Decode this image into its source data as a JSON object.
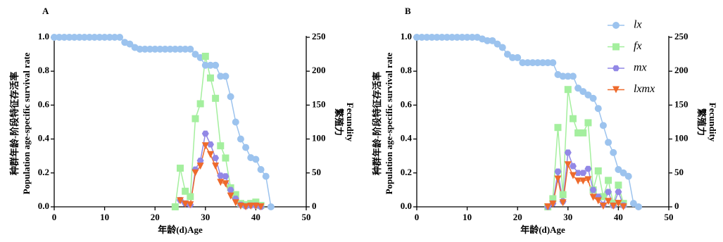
{
  "chart_data": [
    {
      "type": "line",
      "panel_label": "A",
      "x_label": "年龄(d)Age",
      "y_label": [
        "种群年龄-阶段特征存活率",
        "Population age-specific survival rate"
      ],
      "y2_label": [
        "繁殖力",
        "Fecundity"
      ],
      "x": [
        0,
        1,
        2,
        3,
        4,
        5,
        6,
        7,
        8,
        9,
        10,
        11,
        12,
        13,
        14,
        15,
        16,
        17,
        18,
        19,
        20,
        21,
        22,
        23,
        24,
        25,
        26,
        27,
        28,
        29,
        30,
        31,
        32,
        33,
        34,
        35,
        36,
        37,
        38,
        39,
        40,
        41,
        42,
        43
      ],
      "xlim": [
        0,
        50
      ],
      "xticks": [
        0,
        10,
        20,
        30,
        40,
        50
      ],
      "ylim": [
        0,
        1
      ],
      "yticks": [
        {
          "value": 0,
          "label": "0.0"
        },
        0.2,
        0.4,
        0.6,
        0.8,
        {
          "value": 1,
          "label": "1.0"
        }
      ],
      "y2lim": [
        0,
        250
      ],
      "y2ticks": [
        0,
        50,
        100,
        150,
        200,
        250
      ],
      "legend": false,
      "series": [
        {
          "color": "#9cc3ee",
          "marker": "circle",
          "axis": "y",
          "values": [
            1,
            1,
            1,
            1,
            1,
            1,
            1,
            1,
            1,
            1,
            1,
            1,
            1,
            1,
            0.97,
            0.96,
            0.94,
            0.93,
            0.93,
            0.93,
            0.93,
            0.93,
            0.93,
            0.93,
            0.93,
            0.93,
            0.93,
            0.93,
            0.9,
            0.88,
            0.835,
            0.835,
            0.835,
            0.77,
            0.77,
            0.65,
            0.5,
            0.4,
            0.35,
            0.29,
            0.28,
            0.22,
            0.18,
            0
          ]
        },
        {
          "color": "#a4ef9e",
          "marker": "square",
          "axis": "y2",
          "values": [
            null,
            null,
            null,
            null,
            null,
            null,
            null,
            null,
            null,
            null,
            null,
            null,
            null,
            null,
            null,
            null,
            null,
            null,
            null,
            null,
            null,
            null,
            null,
            null,
            0,
            57,
            23,
            15,
            130,
            152,
            222,
            190,
            160,
            90,
            72,
            28,
            18,
            5,
            3,
            5,
            7,
            2,
            null,
            null
          ]
        },
        {
          "color": "#9288e6",
          "marker": "hexagon",
          "axis": "y2",
          "values": [
            null,
            null,
            null,
            null,
            null,
            null,
            null,
            null,
            null,
            null,
            null,
            null,
            null,
            null,
            null,
            null,
            null,
            null,
            null,
            null,
            null,
            null,
            null,
            null,
            null,
            10,
            5,
            3,
            55,
            68,
            108,
            92,
            72,
            46,
            45,
            25,
            12,
            3,
            1,
            2,
            2,
            0,
            null,
            null
          ]
        },
        {
          "color": "#ee6a2c",
          "marker": "triangle",
          "axis": "y2",
          "values": [
            null,
            null,
            null,
            null,
            null,
            null,
            null,
            null,
            null,
            null,
            null,
            null,
            null,
            null,
            null,
            null,
            null,
            null,
            null,
            null,
            null,
            null,
            null,
            null,
            null,
            9,
            4,
            3,
            50,
            60,
            90,
            77,
            60,
            36,
            34,
            16,
            6,
            1,
            0,
            1,
            1,
            0,
            null,
            null
          ]
        }
      ]
    },
    {
      "type": "line",
      "panel_label": "B",
      "x_label": "年龄(d)Age",
      "y_label": [
        "种群年龄-阶段特征存活率",
        "Population age-specific survival rate"
      ],
      "y2_label": [
        "繁殖力",
        "Fecundity"
      ],
      "x": [
        0,
        1,
        2,
        3,
        4,
        5,
        6,
        7,
        8,
        9,
        10,
        11,
        12,
        13,
        14,
        15,
        16,
        17,
        18,
        19,
        20,
        21,
        22,
        23,
        24,
        25,
        26,
        27,
        28,
        29,
        30,
        31,
        32,
        33,
        34,
        35,
        36,
        37,
        38,
        39,
        40,
        41,
        42,
        43,
        44
      ],
      "xlim": [
        0,
        50
      ],
      "xticks": [
        0,
        10,
        20,
        30,
        40,
        50
      ],
      "ylim": [
        0,
        1
      ],
      "yticks": [
        {
          "value": 0,
          "label": "0.0"
        },
        0.2,
        0.4,
        0.6,
        0.8,
        {
          "value": 1,
          "label": "1.0"
        }
      ],
      "y2lim": [
        0,
        250
      ],
      "y2ticks": [
        0,
        50,
        100,
        150,
        200,
        250
      ],
      "legend": "top-right",
      "series": [
        {
          "name": "lx",
          "color": "#9cc3ee",
          "marker": "circle",
          "axis": "y",
          "values": [
            1,
            1,
            1,
            1,
            1,
            1,
            1,
            1,
            1,
            1,
            1,
            1,
            1,
            0.99,
            0.98,
            0.98,
            0.96,
            0.94,
            0.9,
            0.88,
            0.88,
            0.85,
            0.85,
            0.85,
            0.85,
            0.85,
            0.85,
            0.85,
            0.78,
            0.77,
            0.77,
            0.77,
            0.7,
            0.68,
            0.66,
            0.64,
            0.58,
            0.48,
            0.38,
            0.32,
            0.22,
            0.2,
            0.18,
            0.02,
            0
          ]
        },
        {
          "name": "fx",
          "color": "#a4ef9e",
          "marker": "square",
          "axis": "y2",
          "values": [
            null,
            null,
            null,
            null,
            null,
            null,
            null,
            null,
            null,
            null,
            null,
            null,
            null,
            null,
            null,
            null,
            null,
            null,
            null,
            null,
            null,
            null,
            null,
            null,
            null,
            null,
            0,
            12,
            117,
            18,
            173,
            130,
            109,
            109,
            124,
            25,
            53,
            15,
            39,
            5,
            32,
            5,
            null,
            null,
            null
          ]
        },
        {
          "name": "mx",
          "color": "#9288e6",
          "marker": "hexagon",
          "axis": "y2",
          "values": [
            null,
            null,
            null,
            null,
            null,
            null,
            null,
            null,
            null,
            null,
            null,
            null,
            null,
            null,
            null,
            null,
            null,
            null,
            null,
            null,
            null,
            null,
            null,
            null,
            null,
            null,
            0,
            5,
            52,
            8,
            80,
            60,
            50,
            50,
            56,
            25,
            15,
            3,
            22,
            2,
            22,
            2,
            null,
            null,
            null
          ]
        },
        {
          "name": "lxmx",
          "color": "#ee6a2c",
          "marker": "triangle",
          "axis": "y2",
          "values": [
            null,
            null,
            null,
            null,
            null,
            null,
            null,
            null,
            null,
            null,
            null,
            null,
            null,
            null,
            null,
            null,
            null,
            null,
            null,
            null,
            null,
            null,
            null,
            null,
            null,
            null,
            0,
            4,
            41,
            6,
            62,
            46,
            38,
            38,
            40,
            14,
            9,
            1,
            8,
            1,
            5,
            0,
            null,
            null,
            null
          ]
        }
      ]
    }
  ]
}
